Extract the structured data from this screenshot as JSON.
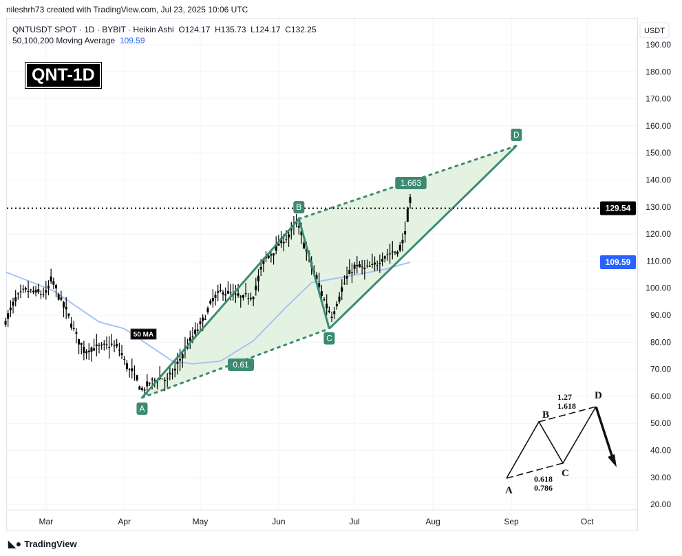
{
  "attribution": "nileshrh73 created with TradingView.com, Jul 23, 2025 10:06 UTC",
  "legend": {
    "symbol_line": "QNTUSDT SPOT · 1D · BYBIT · Heikin Ashi",
    "open": "O124.17",
    "high": "H135.73",
    "low": "L124.17",
    "close": "C132.25",
    "ma_label": "50,100,200 Moving Average",
    "ma_value": "109.59"
  },
  "badge": "QNT-1D",
  "currency": "USDT",
  "footer": "TradingView",
  "colors": {
    "candle": "#000000",
    "pattern": "#3d8a73",
    "fill": "#dff0dc",
    "ma": "#a9c1f5",
    "ma_label": "#2962ff"
  },
  "chart_data": {
    "type": "candlestick",
    "ylim": [
      17,
      197
    ],
    "yticks": [
      "20.00",
      "30.00",
      "40.00",
      "50.00",
      "60.00",
      "70.00",
      "80.00",
      "90.00",
      "100.00",
      "110.00",
      "120.00",
      "130.00",
      "140.00",
      "150.00",
      "160.00",
      "170.00",
      "180.00",
      "190.00"
    ],
    "xticks": [
      {
        "label": "Mar",
        "date": "2025-03-01"
      },
      {
        "label": "Apr",
        "date": "2025-04-01"
      },
      {
        "label": "May",
        "date": "2025-05-01"
      },
      {
        "label": "Jun",
        "date": "2025-06-01"
      },
      {
        "label": "Jul",
        "date": "2025-07-01"
      },
      {
        "label": "Aug",
        "date": "2025-08-01"
      },
      {
        "label": "Sep",
        "date": "2025-09-01"
      },
      {
        "label": "Oct",
        "date": "2025-10-01"
      }
    ],
    "price_path_approx": [
      [
        "2025-02-13",
        88
      ],
      [
        "2025-02-17",
        96
      ],
      [
        "2025-02-21",
        99
      ],
      [
        "2025-02-26",
        98
      ],
      [
        "2025-03-01",
        98
      ],
      [
        "2025-03-03",
        103
      ],
      [
        "2025-03-06",
        97
      ],
      [
        "2025-03-10",
        89
      ],
      [
        "2025-03-13",
        82
      ],
      [
        "2025-03-16",
        77
      ],
      [
        "2025-03-19",
        78
      ],
      [
        "2025-03-23",
        78
      ],
      [
        "2025-03-27",
        79
      ],
      [
        "2025-03-30",
        77
      ],
      [
        "2025-04-02",
        71
      ],
      [
        "2025-04-05",
        67
      ],
      [
        "2025-04-08",
        62
      ],
      [
        "2025-04-11",
        65
      ],
      [
        "2025-04-15",
        67
      ],
      [
        "2025-04-18",
        66
      ],
      [
        "2025-04-21",
        70
      ],
      [
        "2025-04-24",
        76
      ],
      [
        "2025-04-28",
        82
      ],
      [
        "2025-05-02",
        88
      ],
      [
        "2025-05-06",
        96
      ],
      [
        "2025-05-10",
        99
      ],
      [
        "2025-05-14",
        97
      ],
      [
        "2025-05-18",
        96
      ],
      [
        "2025-05-22",
        98
      ],
      [
        "2025-05-26",
        110
      ],
      [
        "2025-05-30",
        114
      ],
      [
        "2025-06-02",
        117
      ],
      [
        "2025-06-05",
        120
      ],
      [
        "2025-06-08",
        124
      ],
      [
        "2025-06-11",
        116
      ],
      [
        "2025-06-14",
        108
      ],
      [
        "2025-06-17",
        100
      ],
      [
        "2025-06-20",
        93
      ],
      [
        "2025-06-22",
        90
      ],
      [
        "2025-06-25",
        98
      ],
      [
        "2025-06-28",
        104
      ],
      [
        "2025-07-01",
        108
      ],
      [
        "2025-07-05",
        107
      ],
      [
        "2025-07-09",
        108
      ],
      [
        "2025-07-12",
        112
      ],
      [
        "2025-07-15",
        113
      ],
      [
        "2025-07-18",
        114
      ],
      [
        "2025-07-20",
        117
      ],
      [
        "2025-07-22",
        128
      ],
      [
        "2025-07-23",
        132.25
      ]
    ],
    "ma50": {
      "label": "50 MA",
      "points": [
        [
          "2025-02-13",
          106
        ],
        [
          "2025-03-04",
          99
        ],
        [
          "2025-03-22",
          87.5
        ],
        [
          "2025-04-01",
          85
        ],
        [
          "2025-04-20",
          73
        ],
        [
          "2025-04-28",
          72
        ],
        [
          "2025-05-09",
          73
        ],
        [
          "2025-05-22",
          80.5
        ],
        [
          "2025-06-04",
          93
        ],
        [
          "2025-06-14",
          102
        ],
        [
          "2025-07-02",
          105
        ],
        [
          "2025-07-13",
          107
        ],
        [
          "2025-07-23",
          109.59
        ]
      ]
    },
    "current_price": "129.54",
    "ma_price": "109.59",
    "pattern": {
      "points": [
        {
          "label": "A",
          "date": "2025-04-08",
          "price": 59.5
        },
        {
          "label": "B",
          "date": "2025-06-09",
          "price": 125.6
        },
        {
          "label": "C",
          "date": "2025-06-21",
          "price": 85
        },
        {
          "label": "D",
          "date": "2025-09-03",
          "price": 152.6
        }
      ],
      "ratio_ac": "0.61",
      "ratio_bd": "1.663",
      "ratio_bd_price": 138.5
    },
    "inset_diagram": {
      "labels": {
        "a": "A",
        "b": "B",
        "c": "C",
        "d": "D"
      },
      "bd_ratios": [
        "1.27",
        "1.618"
      ],
      "ac_ratios": [
        "0.618",
        "0.786"
      ]
    }
  }
}
